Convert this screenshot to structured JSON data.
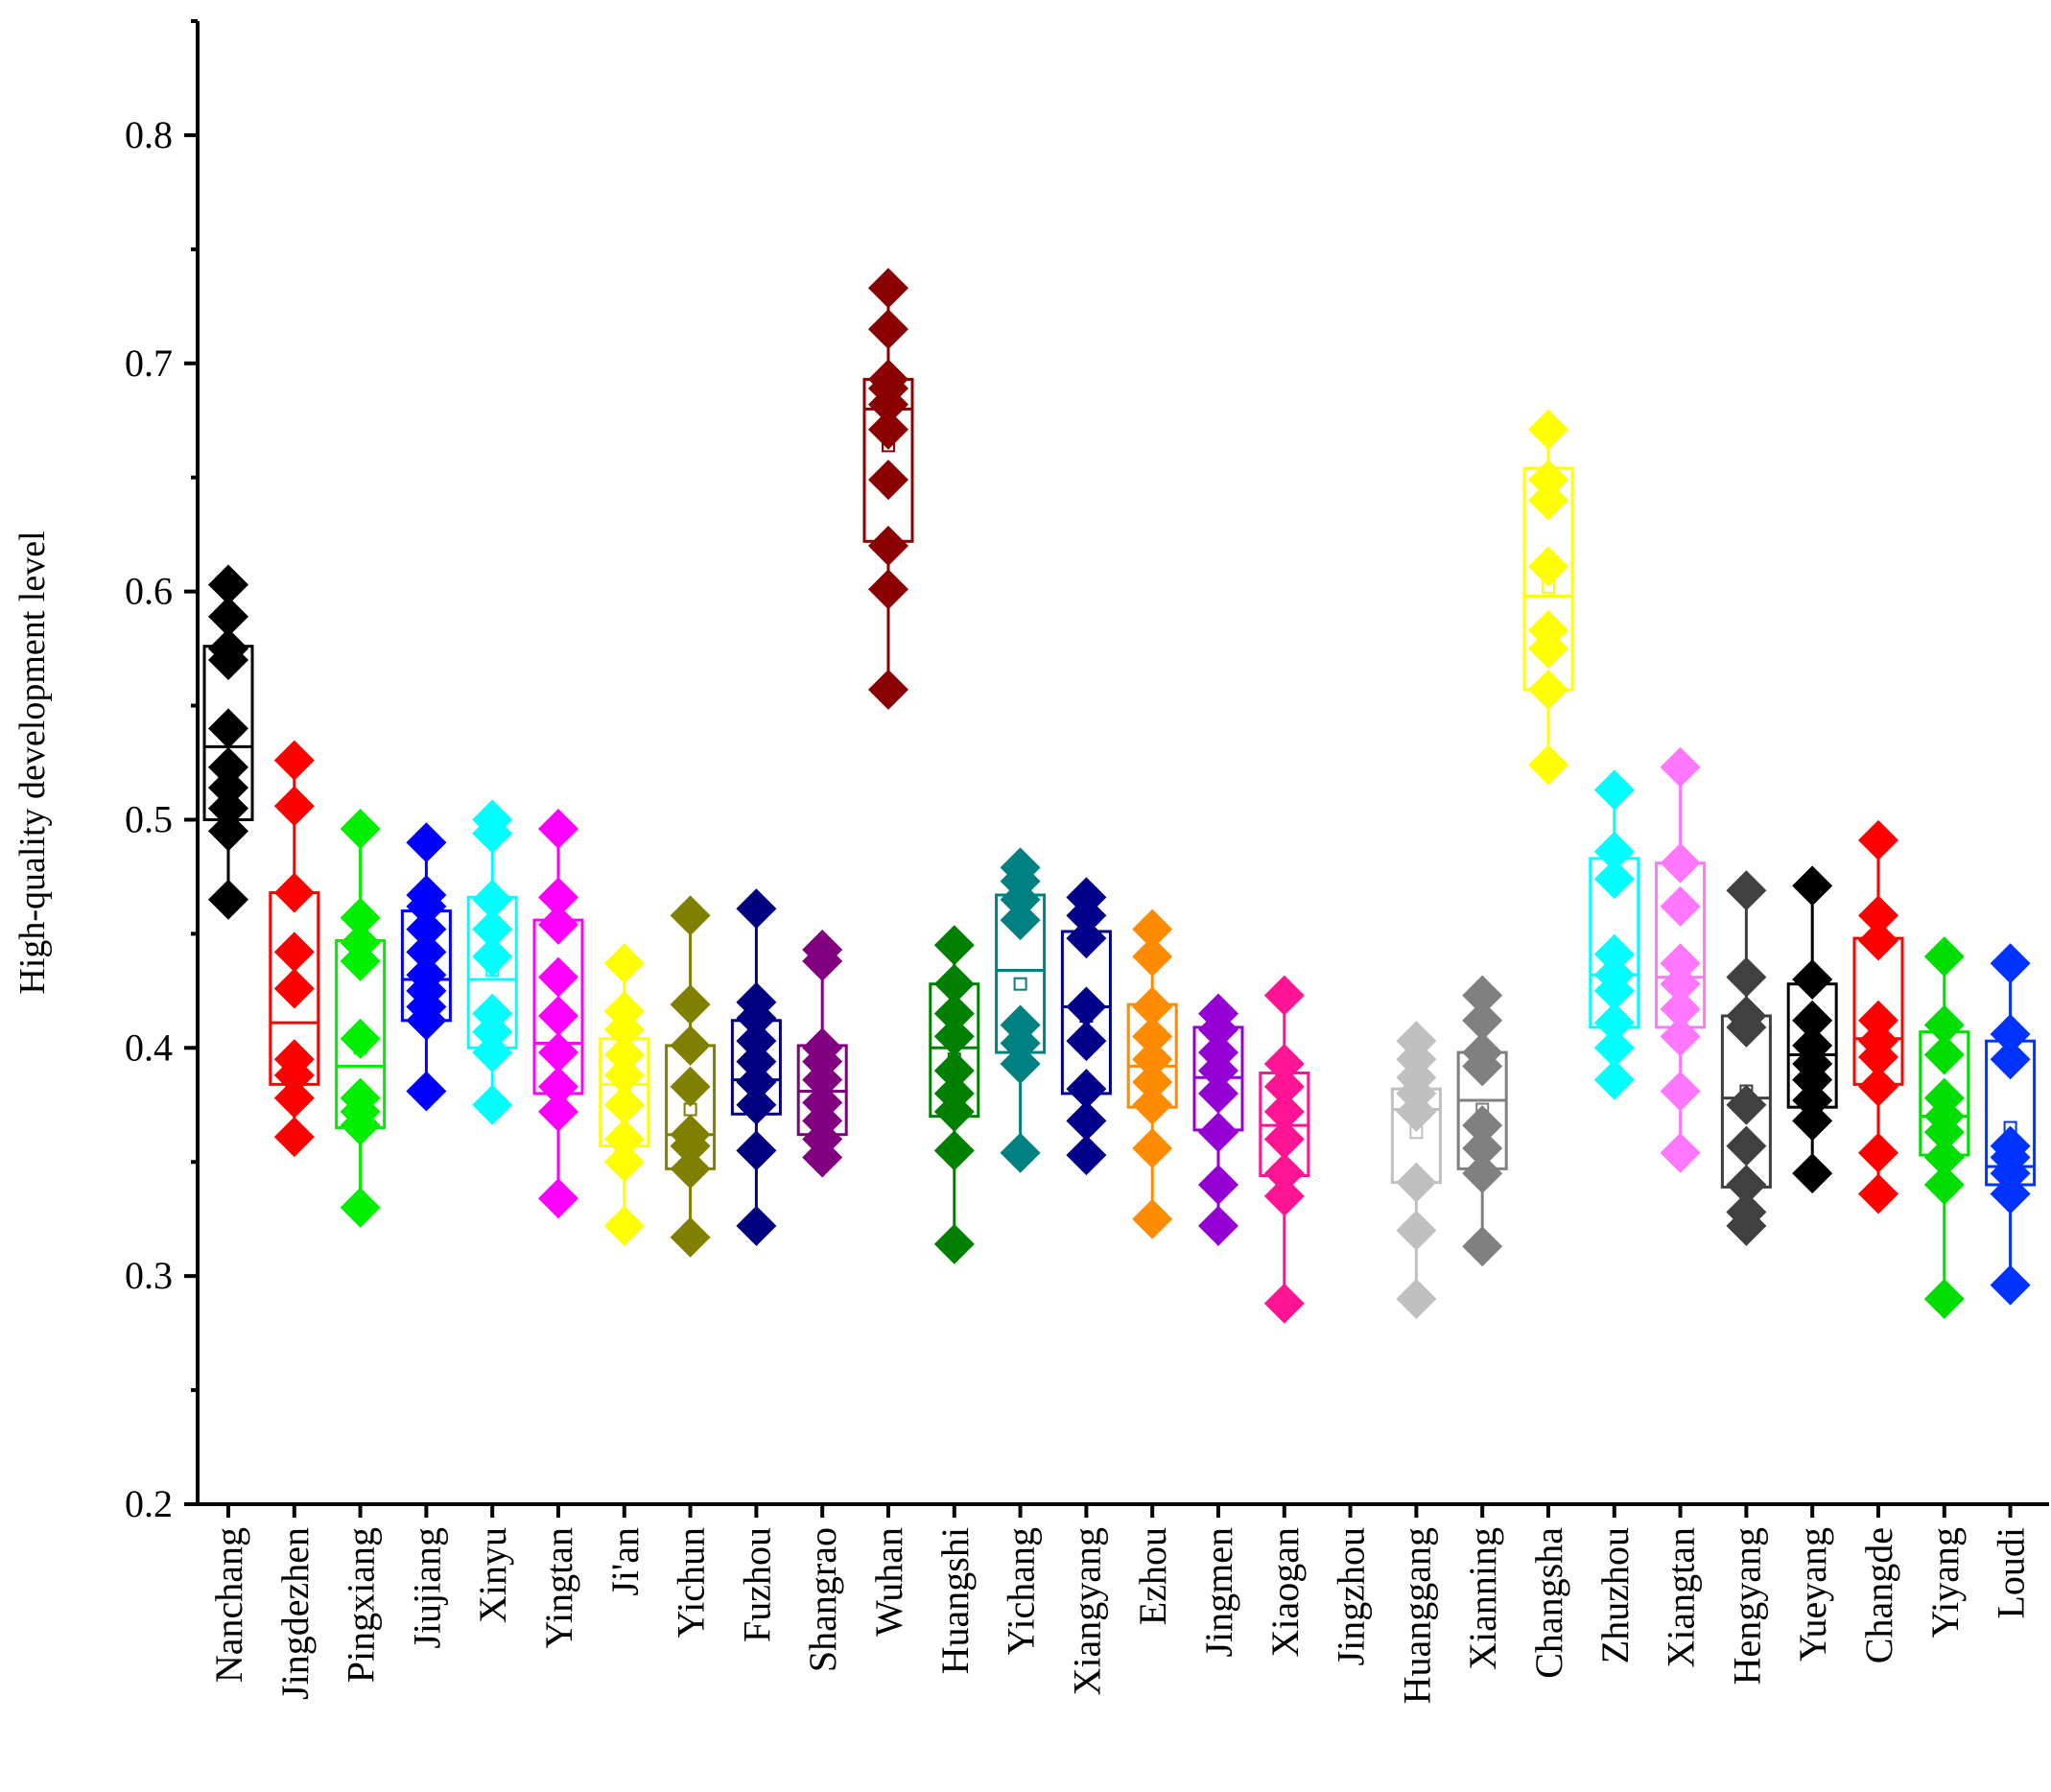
{
  "chart_data": {
    "type": "box",
    "title": "",
    "xlabel": "",
    "ylabel": "High-quality development level",
    "ylim": [
      0.2,
      0.85
    ],
    "ytick_values": [
      0.2,
      0.3,
      0.4,
      0.5,
      0.6,
      0.7,
      0.8
    ],
    "ytick_labels": [
      "0.2",
      "0.3",
      "0.4",
      "0.5",
      "0.6",
      "0.7",
      "0.8"
    ],
    "grid": false,
    "series": [
      {
        "name": "Nanchang",
        "color": "#000000",
        "box": {
          "q1": 0.5,
          "median": 0.532,
          "q3": 0.576,
          "whisker_low": 0.465,
          "whisker_high": 0.603,
          "mean": 0.54
        },
        "points": [
          0.465,
          0.495,
          0.505,
          0.514,
          0.523,
          0.54,
          0.57,
          0.575,
          0.589,
          0.603
        ]
      },
      {
        "name": "Jingdezhen",
        "color": "#ff0000",
        "box": {
          "q1": 0.384,
          "median": 0.411,
          "q3": 0.468,
          "whisker_low": 0.361,
          "whisker_high": 0.526,
          "mean": 0.425
        },
        "points": [
          0.361,
          0.378,
          0.388,
          0.395,
          0.426,
          0.442,
          0.468,
          0.506,
          0.526
        ]
      },
      {
        "name": "Pingxiang",
        "color": "#00ee00",
        "box": {
          "q1": 0.365,
          "median": 0.392,
          "q3": 0.447,
          "whisker_low": 0.33,
          "whisker_high": 0.496,
          "mean": 0.4
        },
        "points": [
          0.33,
          0.366,
          0.372,
          0.378,
          0.404,
          0.438,
          0.446,
          0.457,
          0.496
        ]
      },
      {
        "name": "Jiujiang",
        "color": "#0000ff",
        "box": {
          "q1": 0.412,
          "median": 0.43,
          "q3": 0.46,
          "whisker_low": 0.381,
          "whisker_high": 0.49,
          "mean": 0.432
        },
        "points": [
          0.381,
          0.412,
          0.418,
          0.425,
          0.432,
          0.442,
          0.452,
          0.462,
          0.467,
          0.49
        ]
      },
      {
        "name": "Xinyu",
        "color": "#00ffff",
        "box": {
          "q1": 0.4,
          "median": 0.43,
          "q3": 0.466,
          "whisker_low": 0.375,
          "whisker_high": 0.5,
          "mean": 0.434
        },
        "points": [
          0.375,
          0.398,
          0.407,
          0.415,
          0.44,
          0.452,
          0.465,
          0.494,
          0.5
        ]
      },
      {
        "name": "Yingtan",
        "color": "#ff00ff",
        "box": {
          "q1": 0.38,
          "median": 0.402,
          "q3": 0.456,
          "whisker_low": 0.334,
          "whisker_high": 0.496,
          "mean": 0.412
        },
        "points": [
          0.334,
          0.372,
          0.383,
          0.398,
          0.414,
          0.431,
          0.454,
          0.466,
          0.496
        ]
      },
      {
        "name": "Ji'an",
        "color": "#ffff00",
        "box": {
          "q1": 0.357,
          "median": 0.384,
          "q3": 0.404,
          "whisker_low": 0.322,
          "whisker_high": 0.437,
          "mean": 0.381
        },
        "points": [
          0.322,
          0.35,
          0.36,
          0.375,
          0.388,
          0.397,
          0.408,
          0.416,
          0.437
        ]
      },
      {
        "name": "Yichun",
        "color": "#808000",
        "box": {
          "q1": 0.347,
          "median": 0.362,
          "q3": 0.401,
          "whisker_low": 0.317,
          "whisker_high": 0.458,
          "mean": 0.373
        },
        "points": [
          0.317,
          0.347,
          0.357,
          0.362,
          0.383,
          0.401,
          0.419,
          0.458
        ]
      },
      {
        "name": "Fuzhou",
        "color": "#000080",
        "box": {
          "q1": 0.371,
          "median": 0.386,
          "q3": 0.412,
          "whisker_low": 0.322,
          "whisker_high": 0.461,
          "mean": 0.388
        },
        "points": [
          0.322,
          0.355,
          0.375,
          0.385,
          0.394,
          0.403,
          0.413,
          0.42,
          0.461
        ]
      },
      {
        "name": "Shangrao",
        "color": "#800080",
        "box": {
          "q1": 0.362,
          "median": 0.381,
          "q3": 0.401,
          "whisker_low": 0.352,
          "whisker_high": 0.443,
          "mean": 0.387
        },
        "points": [
          0.352,
          0.36,
          0.368,
          0.376,
          0.386,
          0.394,
          0.4,
          0.438,
          0.443
        ]
      },
      {
        "name": "Wuhan",
        "color": "#8b0000",
        "box": {
          "q1": 0.622,
          "median": 0.68,
          "q3": 0.693,
          "whisker_low": 0.557,
          "whisker_high": 0.733,
          "mean": 0.664
        },
        "points": [
          0.557,
          0.601,
          0.62,
          0.649,
          0.671,
          0.682,
          0.689,
          0.693,
          0.715,
          0.733
        ]
      },
      {
        "name": "Huangshi",
        "color": "#008000",
        "box": {
          "q1": 0.37,
          "median": 0.4,
          "q3": 0.428,
          "whisker_low": 0.314,
          "whisker_high": 0.445,
          "mean": 0.395
        },
        "points": [
          0.314,
          0.355,
          0.372,
          0.38,
          0.39,
          0.405,
          0.415,
          0.428,
          0.445
        ]
      },
      {
        "name": "Yichang",
        "color": "#008080",
        "box": {
          "q1": 0.398,
          "median": 0.434,
          "q3": 0.467,
          "whisker_low": 0.354,
          "whisker_high": 0.479,
          "mean": 0.428
        },
        "points": [
          0.354,
          0.393,
          0.402,
          0.41,
          0.456,
          0.465,
          0.473,
          0.479
        ]
      },
      {
        "name": "Xiangyang",
        "color": "#00008b",
        "box": {
          "q1": 0.38,
          "median": 0.418,
          "q3": 0.451,
          "whisker_low": 0.353,
          "whisker_high": 0.466,
          "mean": 0.414
        },
        "points": [
          0.353,
          0.368,
          0.382,
          0.403,
          0.418,
          0.448,
          0.458,
          0.466
        ]
      },
      {
        "name": "Ezhou",
        "color": "#ff8c00",
        "box": {
          "q1": 0.374,
          "median": 0.392,
          "q3": 0.419,
          "whisker_low": 0.325,
          "whisker_high": 0.452,
          "mean": 0.393
        },
        "points": [
          0.325,
          0.356,
          0.375,
          0.385,
          0.395,
          0.405,
          0.418,
          0.44,
          0.452
        ]
      },
      {
        "name": "Jingmen",
        "color": "#9400d3",
        "box": {
          "q1": 0.364,
          "median": 0.387,
          "q3": 0.409,
          "whisker_low": 0.322,
          "whisker_high": 0.415,
          "mean": 0.384
        },
        "points": [
          0.322,
          0.34,
          0.363,
          0.38,
          0.39,
          0.398,
          0.408,
          0.415
        ]
      },
      {
        "name": "Xiaogan",
        "color": "#ff1493",
        "box": {
          "q1": 0.344,
          "median": 0.366,
          "q3": 0.389,
          "whisker_low": 0.288,
          "whisker_high": 0.423,
          "mean": 0.365
        },
        "points": [
          0.288,
          0.335,
          0.345,
          0.36,
          0.372,
          0.383,
          0.393,
          0.423
        ]
      },
      {
        "name": "Jingzhou",
        "color": "#ffffff",
        "box": null,
        "points": []
      },
      {
        "name": "Huanggang",
        "color": "#c0c0c0",
        "box": {
          "q1": 0.341,
          "median": 0.373,
          "q3": 0.382,
          "whisker_low": 0.29,
          "whisker_high": 0.403,
          "mean": 0.363
        },
        "points": [
          0.29,
          0.32,
          0.341,
          0.372,
          0.38,
          0.387,
          0.395,
          0.403
        ]
      },
      {
        "name": "Xianning",
        "color": "#808080",
        "box": {
          "q1": 0.347,
          "median": 0.377,
          "q3": 0.398,
          "whisker_low": 0.313,
          "whisker_high": 0.423,
          "mean": 0.373
        },
        "points": [
          0.313,
          0.345,
          0.356,
          0.366,
          0.392,
          0.398,
          0.412,
          0.423
        ]
      },
      {
        "name": "Changsha",
        "color": "#ffff00",
        "box": {
          "q1": 0.557,
          "median": 0.598,
          "q3": 0.654,
          "whisker_low": 0.524,
          "whisker_high": 0.671,
          "mean": 0.602
        },
        "points": [
          0.524,
          0.557,
          0.575,
          0.583,
          0.611,
          0.64,
          0.649,
          0.671
        ]
      },
      {
        "name": "Zhuzhou",
        "color": "#00ffff",
        "box": {
          "q1": 0.409,
          "median": 0.432,
          "q3": 0.483,
          "whisker_low": 0.386,
          "whisker_high": 0.513,
          "mean": 0.444
        },
        "points": [
          0.386,
          0.4,
          0.411,
          0.425,
          0.432,
          0.441,
          0.474,
          0.486,
          0.513
        ]
      },
      {
        "name": "Xiangtan",
        "color": "#ff77ff",
        "box": {
          "q1": 0.409,
          "median": 0.431,
          "q3": 0.481,
          "whisker_low": 0.354,
          "whisker_high": 0.523,
          "mean": 0.437
        },
        "points": [
          0.354,
          0.381,
          0.405,
          0.417,
          0.428,
          0.437,
          0.462,
          0.481,
          0.523
        ]
      },
      {
        "name": "Hengyang",
        "color": "#404040",
        "box": {
          "q1": 0.339,
          "median": 0.378,
          "q3": 0.414,
          "whisker_low": 0.322,
          "whisker_high": 0.469,
          "mean": 0.381
        },
        "points": [
          0.322,
          0.328,
          0.34,
          0.357,
          0.375,
          0.409,
          0.414,
          0.431,
          0.469
        ]
      },
      {
        "name": "Yueyang",
        "color": "#000000",
        "box": {
          "q1": 0.374,
          "median": 0.397,
          "q3": 0.428,
          "whisker_low": 0.345,
          "whisker_high": 0.471,
          "mean": 0.401
        },
        "points": [
          0.345,
          0.368,
          0.377,
          0.386,
          0.393,
          0.401,
          0.412,
          0.43,
          0.471
        ]
      },
      {
        "name": "Changde",
        "color": "#ff0000",
        "box": {
          "q1": 0.384,
          "median": 0.404,
          "q3": 0.448,
          "whisker_low": 0.336,
          "whisker_high": 0.491,
          "mean": 0.41
        },
        "points": [
          0.336,
          0.354,
          0.383,
          0.396,
          0.403,
          0.412,
          0.447,
          0.458,
          0.491
        ]
      },
      {
        "name": "Yiyang",
        "color": "#00dd00",
        "box": {
          "q1": 0.353,
          "median": 0.37,
          "q3": 0.407,
          "whisker_low": 0.29,
          "whisker_high": 0.44,
          "mean": 0.375
        },
        "points": [
          0.29,
          0.34,
          0.352,
          0.363,
          0.37,
          0.378,
          0.397,
          0.41,
          0.44
        ]
      },
      {
        "name": "Loudi",
        "color": "#0033ff",
        "box": {
          "q1": 0.34,
          "median": 0.348,
          "q3": 0.403,
          "whisker_low": 0.296,
          "whisker_high": 0.437,
          "mean": 0.365
        },
        "points": [
          0.296,
          0.336,
          0.345,
          0.352,
          0.357,
          0.395,
          0.406,
          0.437
        ]
      }
    ]
  }
}
